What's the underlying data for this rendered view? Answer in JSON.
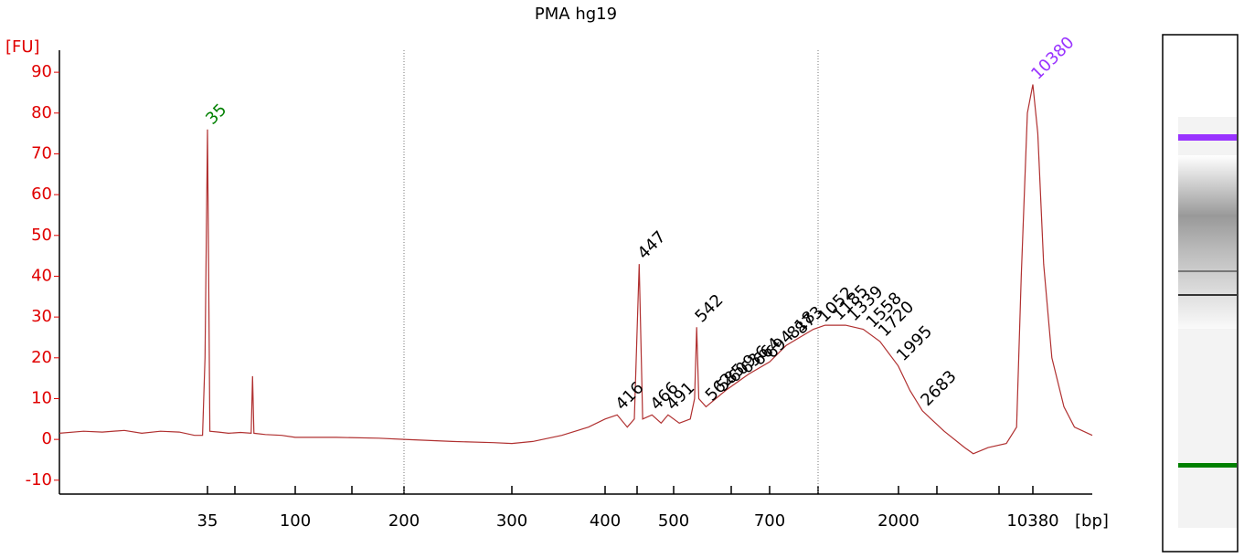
{
  "chart_data": {
    "type": "line",
    "title": "PMA hg19",
    "y_label": "[FU]",
    "x_label": "[bp]",
    "xlim": [
      6,
      21000
    ],
    "log_x": true,
    "xticks": [
      35,
      100,
      200,
      300,
      400,
      500,
      700,
      2000,
      10380
    ],
    "ylim": [
      -13.4,
      95.4
    ],
    "yticks": [
      -10,
      0,
      10,
      20,
      30,
      40,
      50,
      60,
      70,
      80,
      90
    ],
    "axis_color": "#e00000",
    "series": [
      {
        "name": "PMA hg19",
        "color": "#b03030",
        "x": [
          6,
          8,
          10,
          13,
          16,
          20,
          25,
          30,
          33,
          34,
          35,
          35.5,
          36,
          40,
          45,
          52,
          59,
          60,
          61,
          70,
          85,
          100,
          130,
          170,
          200,
          240,
          280,
          300,
          320,
          350,
          380,
          400,
          416,
          430,
          440,
          447,
          452,
          466,
          480,
          491,
          510,
          530,
          538,
          542,
          546,
          560,
          600,
          650,
          700,
          800,
          1000,
          1100,
          1300,
          1500,
          1720,
          1995,
          2300,
          2683,
          3500,
          4500,
          5000,
          6000,
          7500,
          8500,
          9000,
          9700,
          10380,
          11000,
          11800,
          13000,
          15000,
          17000,
          21000
        ],
        "values": [
          1.5,
          2,
          1.8,
          2.2,
          1.5,
          2,
          1.8,
          1,
          1,
          20,
          76,
          40,
          2,
          1.8,
          1.5,
          1.7,
          1.5,
          15.5,
          1.5,
          1.2,
          1,
          0.5,
          0.5,
          0.3,
          0,
          -0.5,
          -0.8,
          -1,
          -0.5,
          1,
          3,
          5,
          6,
          3,
          5,
          43,
          5,
          6,
          4,
          6,
          4,
          5,
          10,
          27.5,
          10,
          8,
          12,
          16,
          19,
          23,
          27,
          28,
          28,
          27,
          24,
          18,
          12,
          7,
          2,
          -2,
          -3.5,
          -2,
          -1,
          3,
          40,
          80,
          87,
          75,
          43,
          20,
          8,
          3,
          1
        ]
      }
    ],
    "peaks": [
      35,
      416,
      447,
      466,
      491,
      542,
      562,
      585,
      609,
      636,
      664,
      694,
      818,
      873,
      1052,
      1185,
      1339,
      1558,
      1720,
      1995,
      2683,
      10380
    ],
    "peak_label_colors": [
      "#008000",
      "#000",
      "#000",
      "#000",
      "#000",
      "#000",
      "#000",
      "#000",
      "#000",
      "#000",
      "#000",
      "#000",
      "#000",
      "#000",
      "#000",
      "#000",
      "#000",
      "#000",
      "#000",
      "#000",
      "#000",
      "#9933ff"
    ]
  }
}
